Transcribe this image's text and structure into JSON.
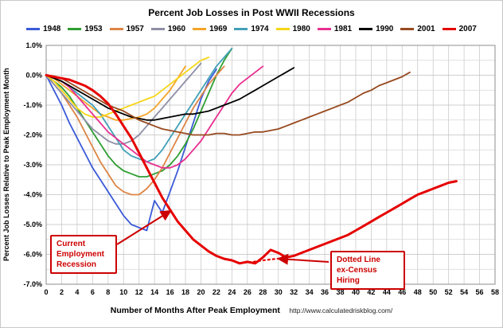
{
  "source_note": "http://www.calculatedriskblog.com/",
  "chart_data": {
    "type": "line",
    "title": "Percent Job Losses in Post WWII Recessions",
    "xlabel": "Number of Months After Peak Employment",
    "ylabel": "Percent Job Losses Relative to Peak Employment Month",
    "xlim": [
      0,
      58
    ],
    "ylim": [
      -7,
      1
    ],
    "x_tick_step": 2,
    "y_grid_step": 0.5,
    "grid": true,
    "legend_position": "top",
    "x_ticks": [
      0,
      2,
      4,
      6,
      8,
      10,
      12,
      14,
      16,
      18,
      20,
      22,
      24,
      26,
      28,
      30,
      32,
      34,
      36,
      38,
      40,
      42,
      44,
      46,
      48,
      50,
      52,
      54,
      56,
      58
    ],
    "y_ticks": [
      {
        "v": 1.0,
        "label": "1.0%"
      },
      {
        "v": 0.0,
        "label": "0.0%"
      },
      {
        "v": -1.0,
        "label": "-1.0%"
      },
      {
        "v": -2.0,
        "label": "-2.0%"
      },
      {
        "v": -3.0,
        "label": "-3.0%"
      },
      {
        "v": -4.0,
        "label": "-4.0%"
      },
      {
        "v": -5.0,
        "label": "-5.0%"
      },
      {
        "v": -6.0,
        "label": "-6.0%"
      },
      {
        "v": -7.0,
        "label": "-7.0%"
      }
    ],
    "annotations": {
      "current_recession": "Current\nEmployment\nRecession",
      "ex_census": "Dotted Line\nex-Census\nHiring"
    },
    "series": [
      {
        "name": "1948",
        "color": "#3a5ad9",
        "x0": 0,
        "values": [
          0,
          -0.5,
          -1.0,
          -1.6,
          -2.1,
          -2.6,
          -3.1,
          -3.5,
          -3.9,
          -4.3,
          -4.7,
          -5.0,
          -5.1,
          -5.2,
          -4.2,
          -4.6,
          -3.9,
          -3.2,
          -2.4,
          -1.6,
          -0.8,
          -0.2,
          0.2
        ]
      },
      {
        "name": "1953",
        "color": "#2f9e33",
        "x0": 0,
        "values": [
          0,
          -0.2,
          -0.4,
          -0.7,
          -1.1,
          -1.5,
          -1.9,
          -2.3,
          -2.7,
          -3.0,
          -3.2,
          -3.3,
          -3.4,
          -3.4,
          -3.3,
          -3.2,
          -3.0,
          -2.7,
          -2.3,
          -1.8,
          -1.2,
          -0.6,
          0.0,
          0.5,
          0.9
        ]
      },
      {
        "name": "1957",
        "color": "#dd8545",
        "x0": 0,
        "values": [
          0,
          -0.3,
          -0.6,
          -1.0,
          -1.4,
          -1.9,
          -2.4,
          -2.9,
          -3.3,
          -3.7,
          -3.9,
          -4.0,
          -4.0,
          -3.8,
          -3.5,
          -3.1,
          -2.6,
          -2.1,
          -1.6,
          -1.1,
          -0.7,
          -0.3,
          0.0,
          0.3
        ]
      },
      {
        "name": "1960",
        "color": "#8e8ea6",
        "x0": 0,
        "values": [
          0,
          -0.3,
          -0.6,
          -0.9,
          -1.2,
          -1.5,
          -1.8,
          -2.0,
          -2.2,
          -2.3,
          -2.3,
          -2.2,
          -2.0,
          -1.7,
          -1.4,
          -1.1,
          -0.8,
          -0.5,
          -0.2,
          0.1,
          0.4
        ]
      },
      {
        "name": "1969",
        "color": "#f4a428",
        "x0": 0,
        "values": [
          0,
          -0.1,
          -0.3,
          -0.5,
          -0.7,
          -0.9,
          -1.1,
          -1.3,
          -1.4,
          -1.5,
          -1.5,
          -1.45,
          -1.4,
          -1.3,
          -1.1,
          -0.8,
          -0.5,
          -0.1,
          0.3
        ]
      },
      {
        "name": "1974",
        "color": "#42a0b8",
        "x0": 0,
        "values": [
          0,
          -0.1,
          -0.2,
          -0.4,
          -0.6,
          -0.8,
          -1.0,
          -1.3,
          -1.7,
          -2.1,
          -2.5,
          -2.7,
          -2.8,
          -2.9,
          -2.8,
          -2.5,
          -2.1,
          -1.7,
          -1.3,
          -0.9,
          -0.5,
          -0.1,
          0.3,
          0.6,
          0.9
        ]
      },
      {
        "name": "1980",
        "color": "#f5d616",
        "x0": 0,
        "values": [
          0,
          -0.2,
          -0.5,
          -0.8,
          -1.1,
          -1.3,
          -1.4,
          -1.4,
          -1.3,
          -1.2,
          -1.1,
          -1.0,
          -0.9,
          -0.8,
          -0.7,
          -0.5,
          -0.3,
          -0.1,
          0.1,
          0.3,
          0.5,
          0.6
        ]
      },
      {
        "name": "1981",
        "color": "#e8308f",
        "x0": 0,
        "values": [
          0,
          -0.1,
          -0.2,
          -0.4,
          -0.7,
          -1.0,
          -1.3,
          -1.6,
          -1.9,
          -2.1,
          -2.3,
          -2.5,
          -2.7,
          -2.9,
          -3.0,
          -3.1,
          -3.1,
          -3.0,
          -2.8,
          -2.5,
          -2.2,
          -1.8,
          -1.4,
          -1.0,
          -0.6,
          -0.3,
          -0.1,
          0.1,
          0.3
        ]
      },
      {
        "name": "1990",
        "color": "#000000",
        "x0": 0,
        "values": [
          0,
          -0.1,
          -0.2,
          -0.35,
          -0.5,
          -0.65,
          -0.8,
          -0.95,
          -1.1,
          -1.2,
          -1.3,
          -1.4,
          -1.45,
          -1.5,
          -1.5,
          -1.45,
          -1.4,
          -1.35,
          -1.3,
          -1.3,
          -1.25,
          -1.2,
          -1.1,
          -1.0,
          -0.9,
          -0.8,
          -0.65,
          -0.5,
          -0.35,
          -0.2,
          -0.05,
          0.1,
          0.25
        ]
      },
      {
        "name": "2001",
        "color": "#97491f",
        "x0": 0,
        "values": [
          0,
          -0.05,
          -0.1,
          -0.25,
          -0.4,
          -0.55,
          -0.7,
          -0.85,
          -1.0,
          -1.1,
          -1.2,
          -1.35,
          -1.5,
          -1.6,
          -1.7,
          -1.8,
          -1.85,
          -1.9,
          -1.95,
          -2.0,
          -2.0,
          -2.0,
          -1.95,
          -1.95,
          -2.0,
          -2.0,
          -1.95,
          -1.9,
          -1.9,
          -1.85,
          -1.8,
          -1.7,
          -1.6,
          -1.5,
          -1.4,
          -1.3,
          -1.2,
          -1.1,
          -1.0,
          -0.9,
          -0.75,
          -0.6,
          -0.5,
          -0.35,
          -0.25,
          -0.15,
          -0.05,
          0.1
        ]
      },
      {
        "name": "2007",
        "color": "#e60000",
        "width": 3,
        "x0": 0,
        "values": [
          0,
          -0.05,
          -0.1,
          -0.15,
          -0.25,
          -0.35,
          -0.5,
          -0.7,
          -0.95,
          -1.3,
          -1.7,
          -2.1,
          -2.6,
          -3.1,
          -3.6,
          -4.1,
          -4.5,
          -4.9,
          -5.2,
          -5.5,
          -5.7,
          -5.9,
          -6.05,
          -6.15,
          -6.2,
          -6.3,
          -6.25,
          -6.3,
          -6.1,
          -5.85,
          -5.95,
          -6.1,
          -6.05,
          -5.95,
          -5.85,
          -5.75,
          -5.65,
          -5.55,
          -5.45,
          -5.35,
          -5.2,
          -5.05,
          -4.9,
          -4.75,
          -4.6,
          -4.45,
          -4.3,
          -4.15,
          -4.0,
          -3.9,
          -3.8,
          -3.7,
          -3.6,
          -3.55
        ]
      },
      {
        "name": "2007 ex-Census",
        "color": "#e60000",
        "width": 2.2,
        "dash": "2,4",
        "legend": false,
        "x0": 25,
        "values": [
          -6.3,
          -6.27,
          -6.24,
          -6.2,
          -6.17,
          -6.14,
          -6.1,
          -6.05
        ]
      }
    ]
  }
}
